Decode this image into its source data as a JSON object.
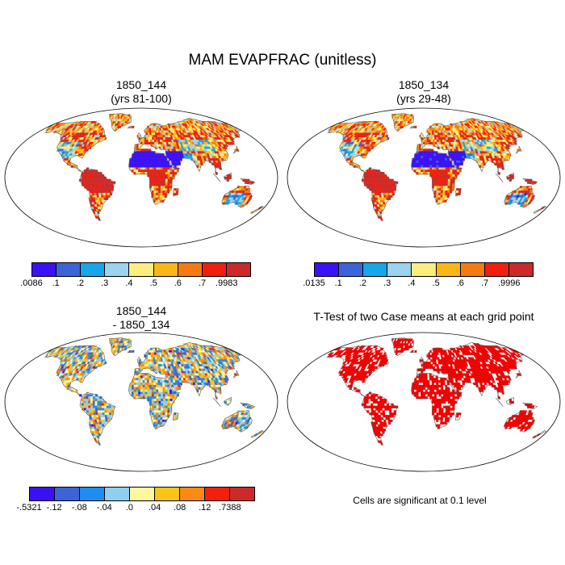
{
  "title": "MAM EVAPFRAC (unitless)",
  "panels": [
    {
      "line1": "1850_144",
      "line2": "(yrs 81-100)",
      "scheme": "abs"
    },
    {
      "line1": "1850_134",
      "line2": "(yrs 29-48)",
      "scheme": "abs"
    },
    {
      "line1": "1850_144",
      "line2": "- 1850_134",
      "scheme": "diff"
    },
    {
      "line1": "T-Test of two Case means at each grid point",
      "line2": "",
      "scheme": "sig"
    }
  ],
  "colorbars": [
    {
      "colors": [
        "#3b10f5",
        "#3c63d8",
        "#16a6ec",
        "#9cd3ed",
        "#fbee7e",
        "#fcb716",
        "#f57b10",
        "#f21f0c",
        "#cc2a2a"
      ],
      "labels": [
        ".0086",
        ".1",
        ".2",
        ".3",
        ".4",
        ".5",
        ".6",
        ".7",
        ".9983"
      ]
    },
    {
      "colors": [
        "#3b10f5",
        "#3c63d8",
        "#16a6ec",
        "#9cd3ed",
        "#fbee7e",
        "#fcb716",
        "#f57b10",
        "#f21f0c",
        "#cc2a2a"
      ],
      "labels": [
        ".0135",
        ".1",
        ".2",
        ".3",
        ".4",
        ".5",
        ".6",
        ".7",
        ".9996"
      ]
    },
    {
      "colors": [
        "#3b10f5",
        "#3c63d8",
        "#1f8cf0",
        "#8fd0f0",
        "#fdf7a0",
        "#fcc415",
        "#fa8a10",
        "#f21f0c",
        "#cc2a2a"
      ],
      "labels": [
        "-.5321",
        "-.12",
        "-.08",
        "-.04",
        ".0",
        ".04",
        ".08",
        ".12",
        ".7388"
      ]
    }
  ],
  "significance_note": "Cells are significant at 0.1 level",
  "colors": {
    "significant": "#ee0000",
    "map_border": "#000000",
    "coastline": "#555555"
  }
}
